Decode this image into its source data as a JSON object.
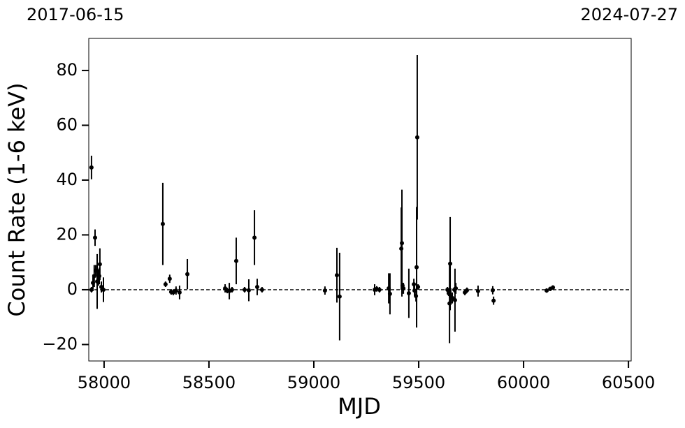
{
  "chart_data": {
    "type": "scatter",
    "annotations": [
      "2017-06-15",
      "2024-07-27"
    ],
    "x_label": "MJD",
    "y_label": "Count Rate (1-6 keV)",
    "xlim": [
      57927,
      60513
    ],
    "ylim": [
      -26,
      91.7
    ],
    "xticks": [
      58000,
      58500,
      59000,
      59500,
      60000,
      60500
    ],
    "yticks": [
      {
        "value": -20,
        "label": "−20"
      },
      0,
      20,
      40,
      60,
      80
    ],
    "reference_line": 0,
    "color": "#000000",
    "x": [
      57940,
      57940,
      57947,
      57953,
      57957,
      57960,
      57967,
      57973,
      57980,
      57977,
      57987,
      57997,
      58280,
      58293,
      58313,
      58320,
      58330,
      58343,
      58360,
      58397,
      58577,
      58587,
      58597,
      58610,
      58630,
      58670,
      58690,
      58717,
      58730,
      58753,
      59053,
      59110,
      59123,
      59290,
      59300,
      59313,
      59357,
      59363,
      59417,
      59420,
      59423,
      59427,
      59453,
      59477,
      59480,
      59487,
      59490,
      59493,
      59497,
      59637,
      59643,
      59647,
      59650,
      59653,
      59660,
      59670,
      59673,
      59677,
      59720,
      59730,
      59783,
      59853,
      59857,
      60110,
      60127,
      60140
    ],
    "values": [
      44.6,
      0,
      2.5,
      5,
      19,
      7,
      3,
      4.5,
      9.3,
      5,
      1,
      0,
      24,
      2,
      4,
      -0.8,
      -1,
      -0.3,
      -1,
      5.7,
      0.5,
      -0.3,
      -0.5,
      0,
      10.5,
      0,
      -0.2,
      19,
      1,
      0,
      -0.3,
      5.3,
      -2.5,
      0,
      0.3,
      0,
      0.5,
      -1.5,
      15,
      17,
      1.5,
      0.5,
      -1.3,
      2,
      -0.3,
      -2.3,
      8.2,
      55.6,
      1,
      0,
      -1.3,
      -5,
      9.5,
      -2.5,
      -3,
      0,
      -3.8,
      0.5,
      -1,
      -0.2,
      -0.5,
      -0.2,
      -4,
      -0.3,
      0.3,
      0.8
    ],
    "errors": [
      4.3,
      1,
      3,
      4,
      3,
      2,
      10,
      3,
      5.8,
      3,
      2,
      4.5,
      15,
      1,
      1.5,
      1,
      1,
      1.5,
      2.5,
      5.5,
      1.5,
      1,
      3,
      1,
      8.5,
      1,
      4,
      10,
      3,
      1,
      1.5,
      10,
      16,
      2,
      1,
      1,
      5.5,
      7.5,
      15,
      19.5,
      1,
      2,
      9,
      2,
      2,
      2,
      22,
      30,
      1,
      1,
      1,
      14.5,
      17,
      3,
      2,
      1,
      11.5,
      2,
      1,
      1,
      2,
      1.5,
      1.5,
      0.8,
      0.8,
      0.8
    ]
  }
}
